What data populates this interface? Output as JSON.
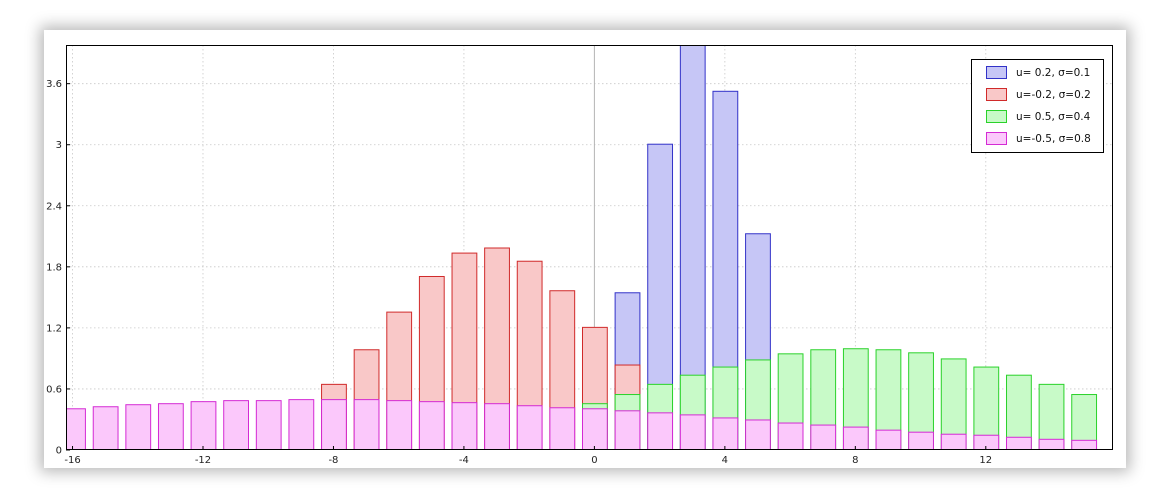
{
  "chart_data": {
    "type": "bar",
    "title": "",
    "xlabel": "",
    "ylabel": "",
    "xlim": [
      -16.2,
      15.9
    ],
    "ylim": [
      0,
      3.98
    ],
    "grid": true,
    "legend_position": "top-right",
    "x_ticks": [
      -16,
      -12,
      -8,
      -4,
      0,
      4,
      8,
      12
    ],
    "x_tick_labels": [
      "-16",
      "-12",
      "-8",
      "-4",
      "0",
      "4",
      "8",
      "12"
    ],
    "y_ticks": [
      0,
      0.6,
      1.2,
      1.8,
      2.4,
      3,
      3.6
    ],
    "y_tick_labels": [
      "0",
      "0.6",
      "1.2",
      "1.8",
      "2.4",
      "3",
      "3.6"
    ],
    "x": [
      -16,
      -15,
      -14,
      -13,
      -12,
      -11,
      -10,
      -9,
      -8,
      -7,
      -6,
      -5,
      -4,
      -3,
      -2,
      -1,
      0,
      1,
      2,
      3,
      4,
      5,
      6,
      7,
      8,
      9,
      10,
      11,
      12,
      13,
      14,
      15
    ],
    "series": [
      {
        "name": "u= 0.2, σ=0.1",
        "fill": "#c6c6f6",
        "stroke": "#3232c8",
        "values": [
          0,
          0,
          0,
          0,
          0,
          0,
          0,
          0,
          0,
          0,
          0,
          0,
          0,
          0,
          0,
          0,
          0,
          1.55,
          3.01,
          3.98,
          3.53,
          2.13,
          0,
          0,
          0,
          0,
          0,
          0,
          0,
          0,
          0,
          0
        ]
      },
      {
        "name": "u=-0.2, σ=0.2",
        "fill": "#f9c8c8",
        "stroke": "#d02a2a",
        "values": [
          0,
          0,
          0,
          0,
          0,
          0,
          0,
          0,
          0.65,
          0.99,
          1.36,
          1.71,
          1.94,
          1.99,
          1.86,
          1.57,
          1.21,
          0.84,
          0,
          0,
          0,
          0,
          0,
          0,
          0,
          0,
          0,
          0,
          0,
          0,
          0,
          0
        ]
      },
      {
        "name": "u= 0.5, σ=0.4",
        "fill": "#c8fac8",
        "stroke": "#2ad22a",
        "values": [
          0,
          0,
          0,
          0,
          0,
          0,
          0,
          0,
          0,
          0,
          0,
          0,
          0,
          0,
          0,
          0,
          0.46,
          0.55,
          0.65,
          0.74,
          0.82,
          0.89,
          0.95,
          0.99,
          1.0,
          0.99,
          0.96,
          0.9,
          0.82,
          0.74,
          0.65,
          0.55
        ]
      },
      {
        "name": "u=-0.5, σ=0.8",
        "fill": "#fbc8fb",
        "stroke": "#d42ad4",
        "values": [
          0.41,
          0.43,
          0.45,
          0.46,
          0.48,
          0.49,
          0.49,
          0.5,
          0.5,
          0.5,
          0.49,
          0.48,
          0.47,
          0.46,
          0.44,
          0.42,
          0.41,
          0.39,
          0.37,
          0.35,
          0.32,
          0.3,
          0.27,
          0.25,
          0.23,
          0.2,
          0.18,
          0.16,
          0.15,
          0.13,
          0.11,
          0.1
        ]
      }
    ]
  }
}
